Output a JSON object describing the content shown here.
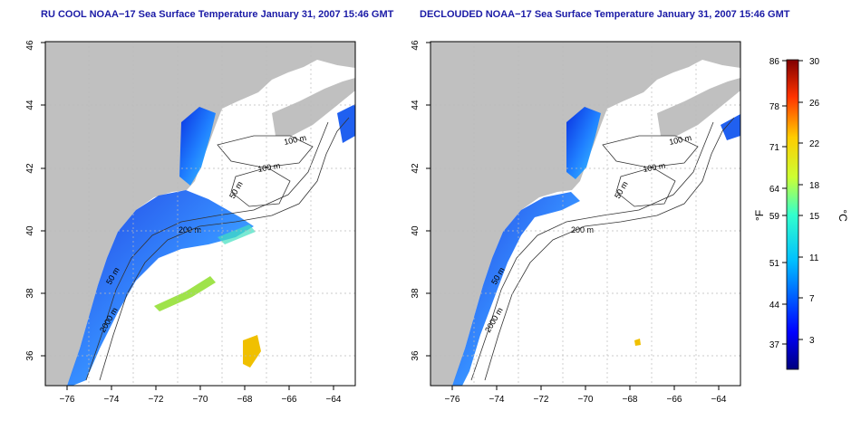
{
  "panels": [
    {
      "title": "RU COOL NOAA−17 Sea Surface Temperature January 31, 2007 15:46 GMT",
      "contour_labels": [
        "100 m",
        "100 m",
        "50 m",
        "200 m",
        "50 m",
        "2000 m"
      ]
    },
    {
      "title": "DECLOUDED NOAA−17 Sea Surface Temperature January 31, 2007 15:46 GMT",
      "contour_labels": [
        "100 m",
        "100 m",
        "50 m",
        "200 m",
        "50 m",
        "2000 m"
      ]
    }
  ],
  "axes": {
    "x_ticks": [
      "−76",
      "−74",
      "−72",
      "−70",
      "−68",
      "−66",
      "−64"
    ],
    "y_ticks": [
      "36",
      "38",
      "40",
      "42",
      "44",
      "46"
    ]
  },
  "colorbar": {
    "fahrenheit_ticks": [
      "86",
      "78",
      "71",
      "64",
      "59",
      "51",
      "44",
      "37"
    ],
    "celsius_ticks": [
      "30",
      "26",
      "22",
      "18",
      "15",
      "11",
      "7",
      "3"
    ],
    "left_unit": "°F",
    "right_unit": "°C"
  },
  "colors": {
    "land": "#c0c0c0",
    "ocean": "#ffffff",
    "title": "#1a1aa6",
    "contour": "#333333",
    "grid": "#bbbbbb"
  }
}
